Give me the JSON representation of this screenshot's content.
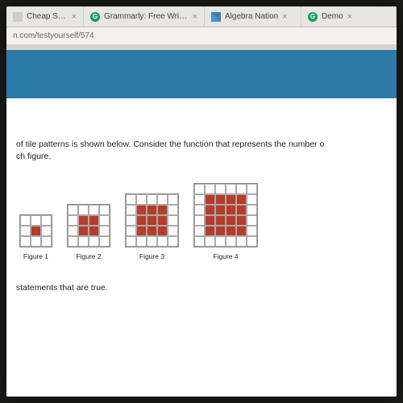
{
  "tabs": [
    {
      "title": "Cheap Squishi",
      "icon": "generic"
    },
    {
      "title": "Grammarly: Free Writing",
      "icon": "g"
    },
    {
      "title": "Algebra Nation",
      "icon": "flag"
    },
    {
      "title": "Demo",
      "icon": "g"
    }
  ],
  "url": "n.com/testyourself/574",
  "question_line1": "of tile patterns is shown below. Consider the function that represents the number o",
  "question_line2": "ch figure.",
  "figures": [
    {
      "gridSize": 3,
      "fillStart": 1,
      "fillEnd": 1,
      "cell": 13,
      "label": "Figure 1"
    },
    {
      "gridSize": 4,
      "fillStart": 1,
      "fillEnd": 2,
      "cell": 13,
      "label": "Figure 2"
    },
    {
      "gridSize": 5,
      "fillStart": 1,
      "fillEnd": 3,
      "cell": 13,
      "label": "Figure 3"
    },
    {
      "gridSize": 6,
      "fillStart": 1,
      "fillEnd": 4,
      "cell": 13,
      "label": "Figure 4"
    }
  ],
  "bottom_text": "statements that are true.",
  "colors": {
    "banner": "#2b7aa8",
    "tile_fill": "#b83c2a",
    "tile_border": "#aaaaaa",
    "grid_border": "#888888",
    "page_bg": "#ffffff"
  }
}
